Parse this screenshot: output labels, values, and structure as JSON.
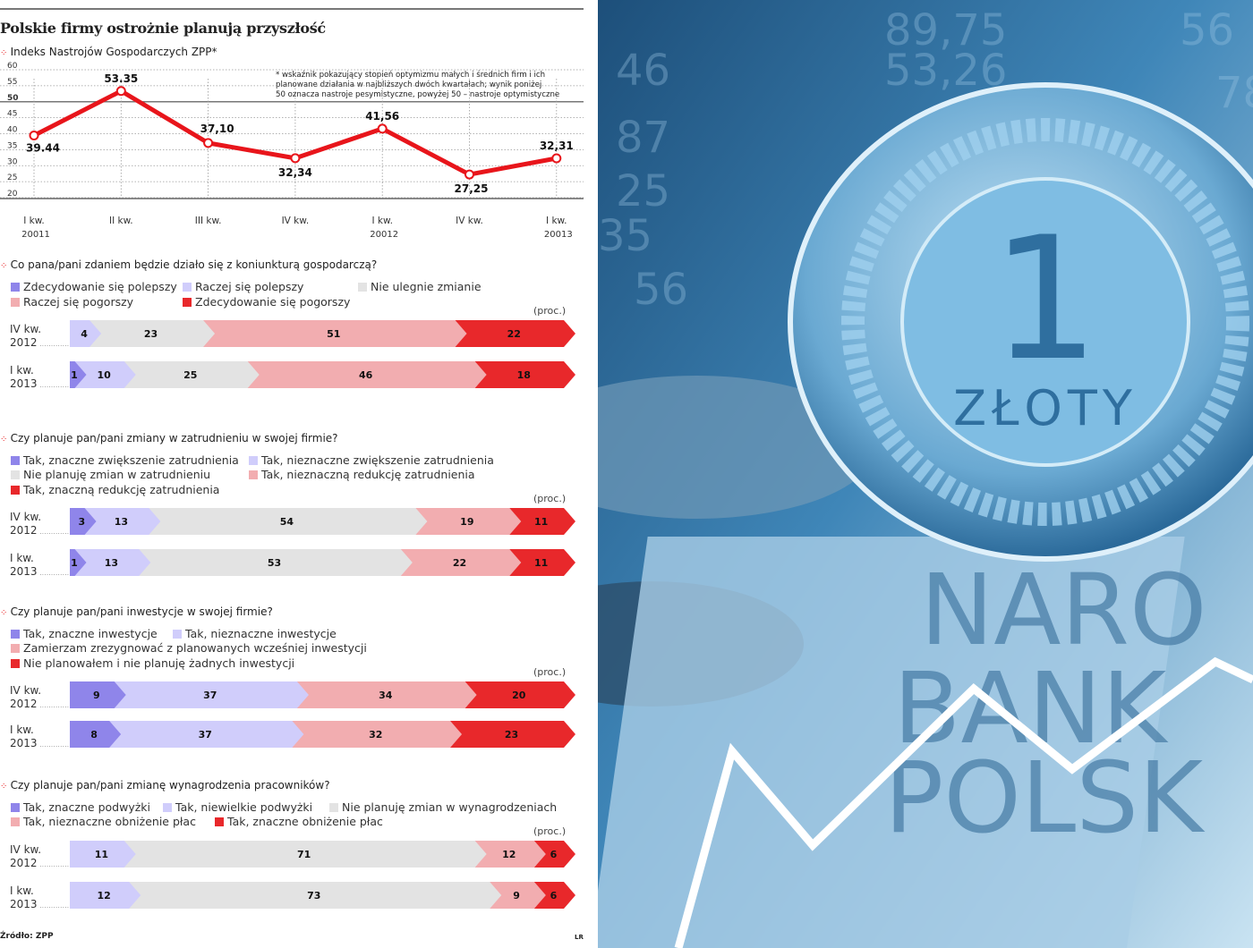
{
  "header": {
    "title": "Polskie firmy ostrożnie planują przyszłość",
    "index_label": "Indeks Nastrojów Gospodarczych ZPP*",
    "footnote_lines": [
      "* wskaźnik pokazujący stopień optymizmu małych i średnich firm i ich",
      "planowane działania w najbliższych dwóch kwartałach; wynik poniżej",
      "50 oznacza nastroje pesymistyczne, powyżej 50 – nastroje optymistyczne"
    ]
  },
  "colors": {
    "dark_purple": "#8f85ea",
    "light_lavender": "#d0cdfb",
    "gray": "#e3e3e3",
    "pink": "#f2adb0",
    "red": "#e8282b",
    "line": "#e8151b"
  },
  "chart_data": [
    {
      "type": "line",
      "title": "Indeks Nastrojów Gospodarczych ZPP*",
      "categories": [
        [
          "I kw.",
          "20011"
        ],
        [
          "II kw.",
          ""
        ],
        [
          "III kw.",
          ""
        ],
        [
          "IV kw.",
          ""
        ],
        [
          "I kw.",
          "20012"
        ],
        [
          "IV kw.",
          ""
        ],
        [
          "I kw.",
          "20013"
        ]
      ],
      "values": [
        39.44,
        53.35,
        37.1,
        32.34,
        41.56,
        27.25,
        32.31
      ],
      "value_labels": [
        "39.44",
        "53.35",
        "37,10",
        "32,34",
        "41,56",
        "27,25",
        "32,31"
      ],
      "ylim": [
        20,
        60
      ],
      "yticks": [
        "60",
        "55",
        "50",
        "45",
        "40",
        "35",
        "30",
        "25",
        "20"
      ],
      "reference_line": 50,
      "grid": true
    },
    {
      "type": "bar",
      "stacked": true,
      "orientation": "horizontal",
      "question": "Co pana/pani zdaniem będzie działo się z koniunkturą gospodarczą?",
      "unit": "(proc.)",
      "legend": [
        "Zdecydowanie się polepszy",
        "Raczej się polepszy",
        "Nie ulegnie zmianie",
        "Raczej się pogorszy",
        "Zdecydowanie się pogorszy"
      ],
      "legend_colors": [
        "dark_purple",
        "light_lavender",
        "gray",
        "pink",
        "red"
      ],
      "rows": [
        {
          "label": [
            "IV kw.",
            "2012"
          ],
          "values": [
            0,
            4,
            23,
            51,
            22
          ]
        },
        {
          "label": [
            "I kw.",
            "2013"
          ],
          "values": [
            1,
            10,
            25,
            46,
            18
          ]
        }
      ]
    },
    {
      "type": "bar",
      "stacked": true,
      "orientation": "horizontal",
      "question": "Czy planuje pan/pani zmiany w zatrudnieniu w swojej firmie?",
      "unit": "(proc.)",
      "legend": [
        "Tak, znaczne zwiększenie zatrudnienia",
        "Tak, nieznaczne zwiększenie zatrudnienia",
        "Nie planuję zmian w zatrudnieniu",
        "Tak, nieznaczną redukcję zatrudnienia",
        "Tak, znaczną redukcję zatrudnienia"
      ],
      "legend_colors": [
        "dark_purple",
        "light_lavender",
        "gray",
        "pink",
        "red"
      ],
      "rows": [
        {
          "label": [
            "IV kw.",
            "2012"
          ],
          "values": [
            3,
            13,
            54,
            19,
            11
          ]
        },
        {
          "label": [
            "I kw.",
            "2013"
          ],
          "values": [
            1,
            13,
            53,
            22,
            11
          ]
        }
      ]
    },
    {
      "type": "bar",
      "stacked": true,
      "orientation": "horizontal",
      "question": "Czy planuje pan/pani inwestycje w swojej firmie?",
      "unit": "(proc.)",
      "legend": [
        "Tak, znaczne inwestycje",
        "Tak, nieznaczne inwestycje",
        "Zamierzam zrezygnować z planowanych wcześniej inwestycji",
        "Nie planowałem i nie planuję żadnych inwestycji"
      ],
      "legend_colors": [
        "dark_purple",
        "light_lavender",
        "pink",
        "red"
      ],
      "rows": [
        {
          "label": [
            "IV kw.",
            "2012"
          ],
          "values": [
            9,
            37,
            34,
            20
          ]
        },
        {
          "label": [
            "I kw.",
            "2013"
          ],
          "values": [
            8,
            37,
            32,
            23
          ]
        }
      ]
    },
    {
      "type": "bar",
      "stacked": true,
      "orientation": "horizontal",
      "question": "Czy planuje pan/pani zmianę wynagrodzenia pracowników?",
      "unit": "(proc.)",
      "legend": [
        "Tak, znaczne podwyżki",
        "Tak, niewielkie podwyżki",
        "Nie planuję zmian w wynagrodzeniach",
        "Tak, nieznaczne obniżenie płac",
        "Tak, znaczne obniżenie płac"
      ],
      "legend_colors": [
        "dark_purple",
        "light_lavender",
        "gray",
        "pink",
        "red"
      ],
      "rows": [
        {
          "label": [
            "IV kw.",
            "2012"
          ],
          "values": [
            0,
            11,
            71,
            12,
            6
          ]
        },
        {
          "label": [
            "I kw.",
            "2013"
          ],
          "values": [
            0,
            12,
            73,
            9,
            6
          ]
        }
      ]
    }
  ],
  "footer": {
    "source": "Źródło: ZPP",
    "author": "LR"
  },
  "photo": {
    "coin_value": "1",
    "coin_text": "ZŁOTY",
    "banknote_text": [
      "NARO",
      "BANK",
      "POLSK"
    ],
    "background_numbers": [
      "89,75",
      "53,26",
      "56",
      "46",
      "87",
      "25",
      "35",
      "56",
      "78"
    ]
  }
}
